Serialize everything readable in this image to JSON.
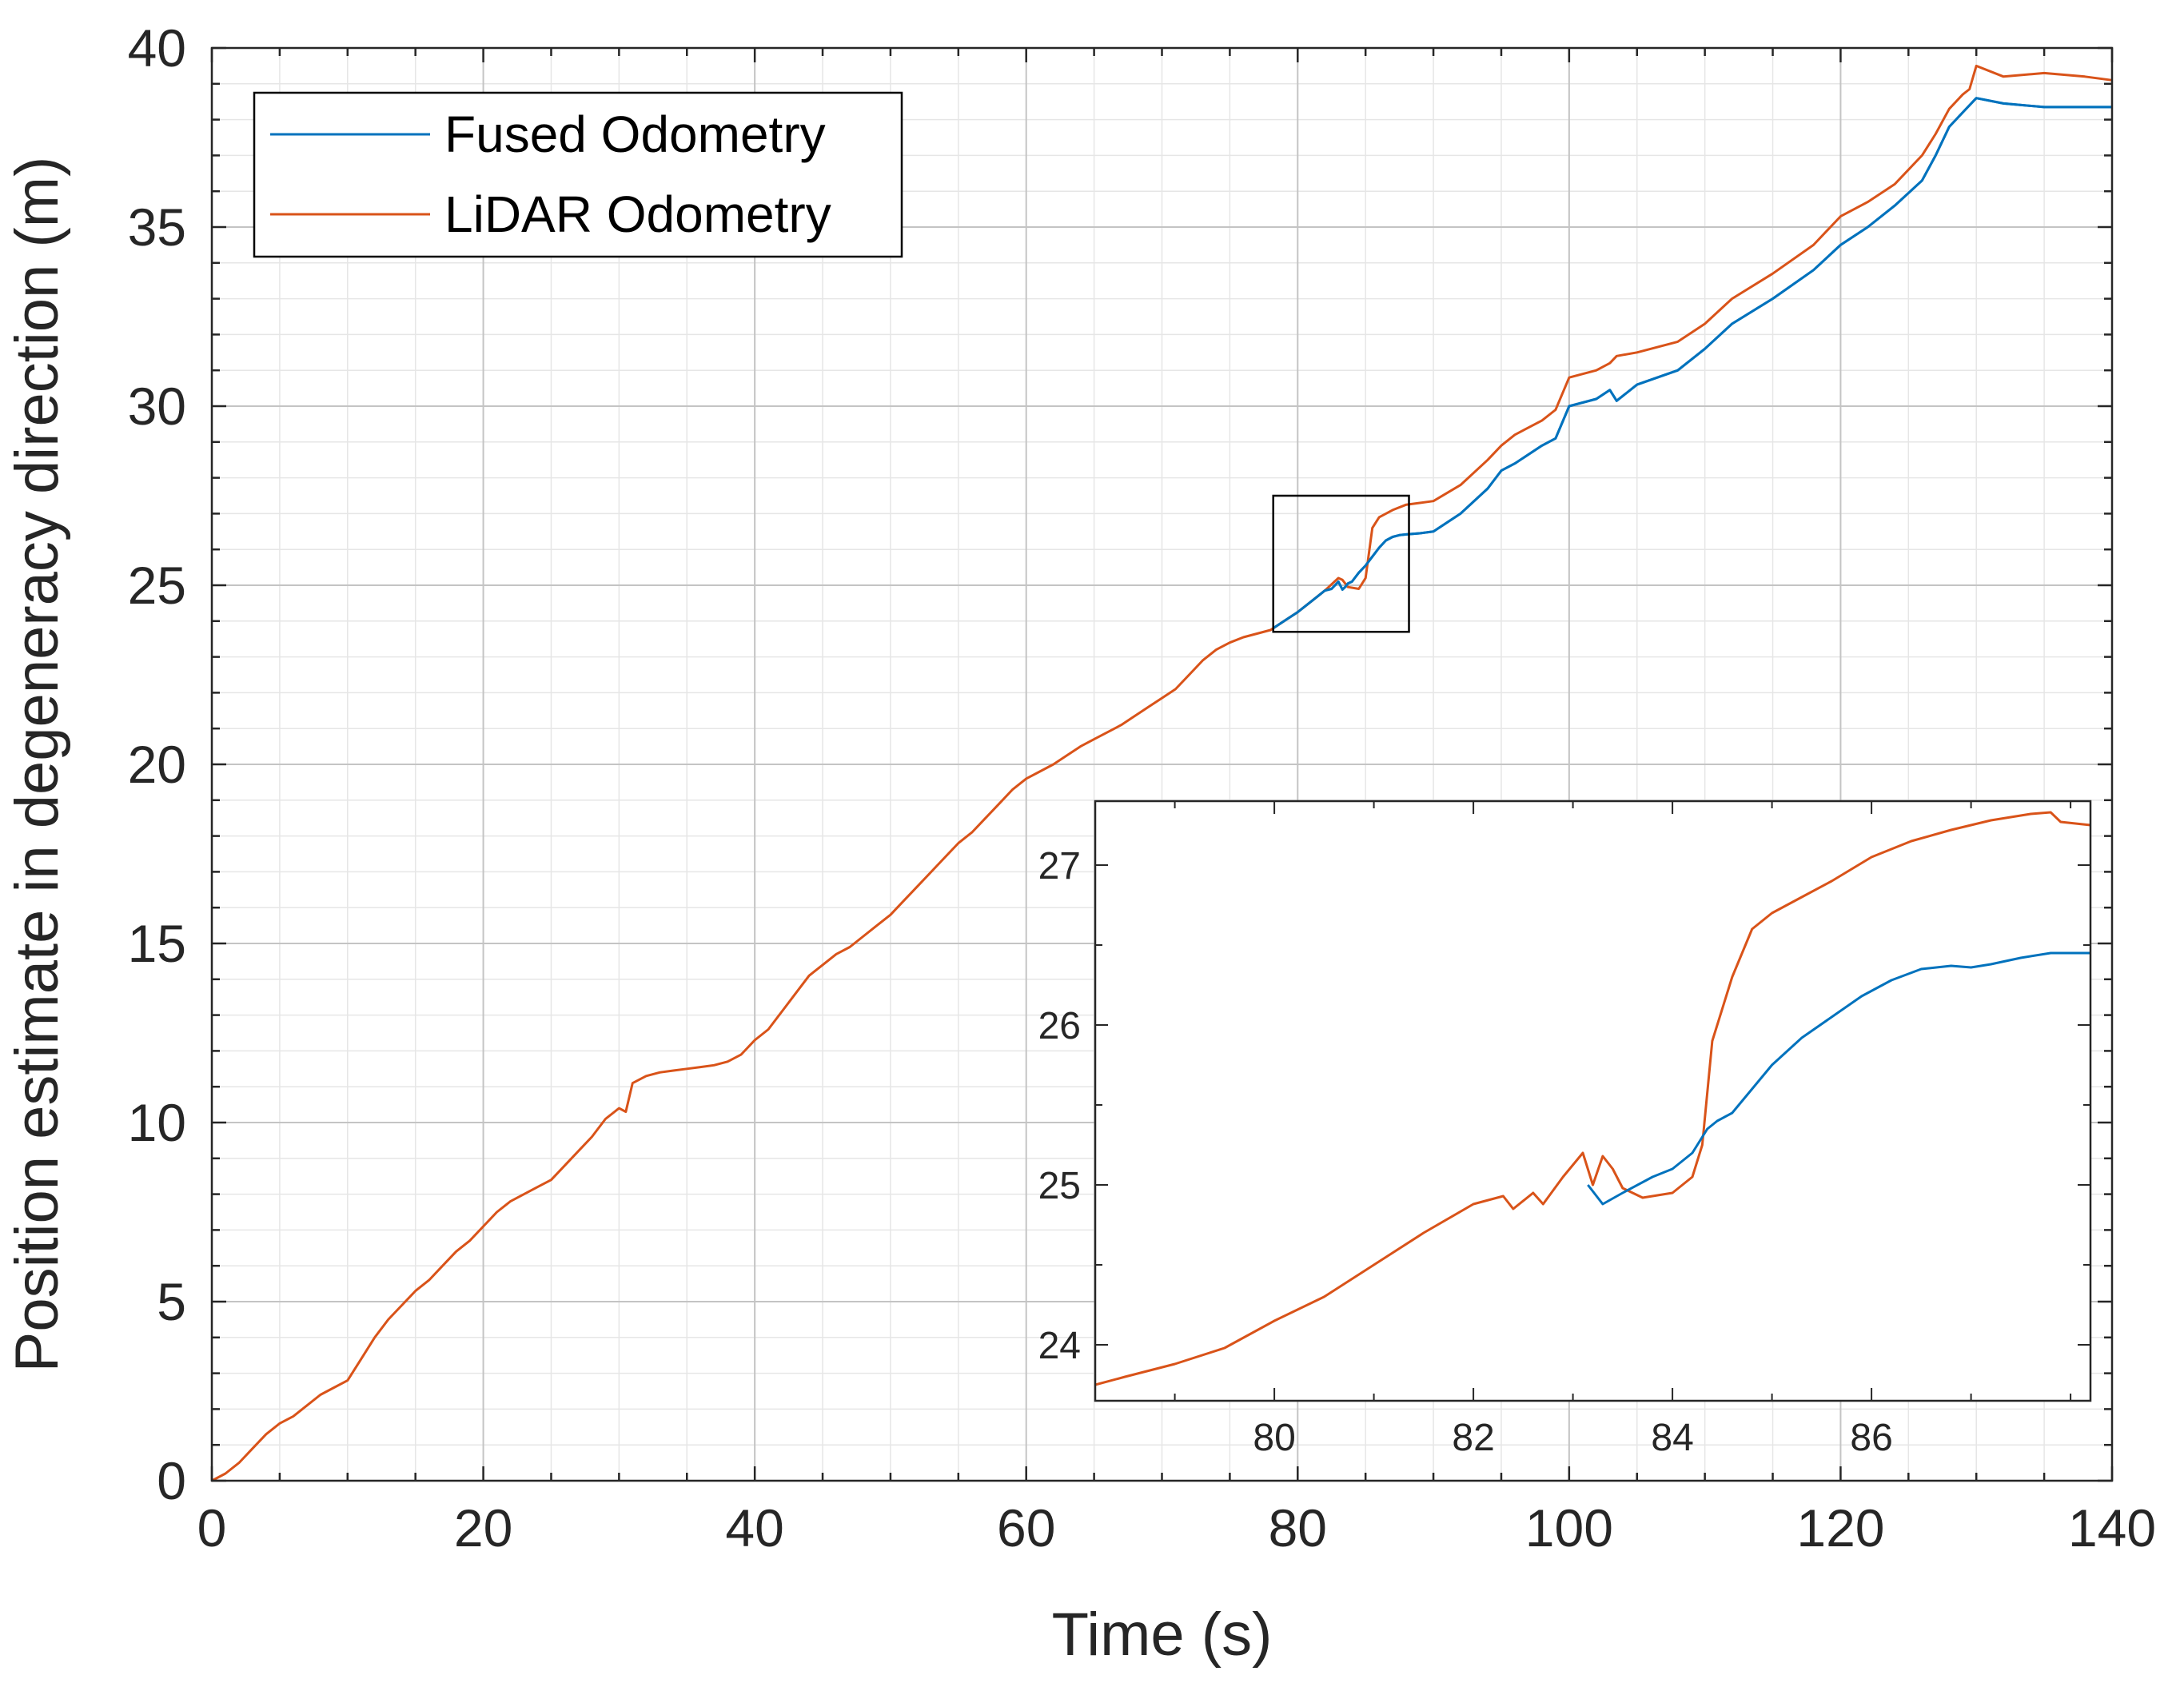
{
  "chart_data": {
    "type": "line",
    "xlabel": "Time (s)",
    "ylabel": "Position estimate in degeneracy direction (m)",
    "xlim": [
      0,
      140
    ],
    "ylim": [
      0,
      40
    ],
    "x_ticks": [
      0,
      20,
      40,
      60,
      80,
      100,
      120,
      140
    ],
    "y_ticks": [
      0,
      5,
      10,
      15,
      20,
      25,
      30,
      35,
      40
    ],
    "grid": "on (major and minor)",
    "legend_position": "top-left",
    "colors": {
      "fused": "#0072BD",
      "lidar": "#D95319",
      "grid": "#d0d0d0",
      "axis": "#262626"
    },
    "series": [
      {
        "name": "Fused Odometry",
        "x": [
          78.2,
          79,
          80,
          81,
          81.5,
          82,
          82.5,
          83,
          83.3,
          83.5,
          83.7,
          84,
          84.2,
          84.5,
          85,
          85.5,
          86,
          86.5,
          87,
          87.5,
          88,
          89,
          90,
          92,
          94,
          95,
          96,
          98,
          99,
          100,
          102,
          103,
          103.5,
          105,
          108,
          110,
          112,
          115,
          118,
          120,
          122,
          124,
          126,
          127,
          128,
          129,
          130,
          132,
          135,
          138,
          140
        ],
        "values": [
          23.8,
          24.0,
          24.25,
          24.55,
          24.7,
          24.85,
          24.9,
          25.1,
          24.88,
          24.95,
          25.05,
          25.1,
          25.2,
          25.35,
          25.55,
          25.8,
          26.05,
          26.25,
          26.35,
          26.4,
          26.42,
          26.45,
          26.5,
          27.0,
          27.7,
          28.2,
          28.4,
          28.9,
          29.1,
          30.0,
          30.2,
          30.45,
          30.15,
          30.6,
          31.0,
          31.6,
          32.3,
          33.0,
          33.8,
          34.5,
          35.0,
          35.6,
          36.3,
          37.0,
          37.8,
          38.2,
          38.6,
          38.45,
          38.35,
          38.35,
          38.35
        ]
      },
      {
        "name": "LiDAR Odometry",
        "x": [
          0,
          1,
          2,
          3,
          4,
          5,
          6,
          7,
          8,
          9,
          10,
          11,
          12,
          13,
          14,
          15,
          16,
          17,
          18,
          19,
          20,
          21,
          22,
          23,
          24,
          25,
          26,
          27,
          28,
          29,
          30,
          30.5,
          31,
          32,
          33,
          34,
          35,
          36,
          37,
          38,
          39,
          40,
          41,
          42,
          43,
          44,
          45,
          46,
          47,
          48,
          49,
          50,
          51,
          52,
          53,
          54,
          55,
          56,
          57,
          58,
          59,
          60,
          61,
          62,
          63,
          64,
          65,
          66,
          67,
          68,
          69,
          70,
          71,
          72,
          73,
          74,
          75,
          76,
          77,
          78,
          79,
          80,
          81,
          82,
          83,
          83.3,
          83.7,
          84.5,
          85,
          85.5,
          86,
          87,
          88,
          89,
          90,
          92,
          94,
          95,
          96,
          98,
          99,
          100,
          102,
          103,
          103.5,
          105,
          108,
          110,
          112,
          115,
          118,
          120,
          122,
          124,
          126,
          127,
          128,
          129,
          129.5,
          130,
          132,
          135,
          138,
          140
        ],
        "values": [
          0.0,
          0.2,
          0.5,
          0.9,
          1.3,
          1.6,
          1.8,
          2.1,
          2.4,
          2.6,
          2.8,
          3.4,
          4.0,
          4.5,
          4.9,
          5.3,
          5.6,
          6.0,
          6.4,
          6.7,
          7.1,
          7.5,
          7.8,
          8.0,
          8.2,
          8.4,
          8.8,
          9.2,
          9.6,
          10.1,
          10.4,
          10.3,
          11.1,
          11.3,
          11.4,
          11.45,
          11.5,
          11.55,
          11.6,
          11.7,
          11.9,
          12.3,
          12.6,
          13.1,
          13.6,
          14.1,
          14.4,
          14.7,
          14.9,
          15.2,
          15.5,
          15.8,
          16.2,
          16.6,
          17.0,
          17.4,
          17.8,
          18.1,
          18.5,
          18.9,
          19.3,
          19.6,
          19.8,
          20.0,
          20.25,
          20.5,
          20.7,
          20.9,
          21.1,
          21.35,
          21.6,
          21.85,
          22.1,
          22.5,
          22.9,
          23.2,
          23.4,
          23.55,
          23.65,
          23.75,
          24.0,
          24.25,
          24.55,
          24.85,
          25.2,
          25.15,
          24.95,
          24.9,
          25.2,
          26.6,
          26.9,
          27.1,
          27.25,
          27.3,
          27.35,
          27.8,
          28.5,
          28.9,
          29.2,
          29.6,
          29.9,
          30.8,
          31.0,
          31.2,
          31.4,
          31.5,
          31.8,
          32.3,
          33.0,
          33.7,
          34.5,
          35.3,
          35.7,
          36.2,
          37.0,
          37.6,
          38.3,
          38.7,
          38.85,
          39.5,
          39.2,
          39.3,
          39.2,
          39.1
        ]
      }
    ],
    "inset": {
      "xlim": [
        78.2,
        88.2
      ],
      "ylim": [
        23.65,
        27.4
      ],
      "x_ticks": [
        80,
        82,
        84,
        86
      ],
      "y_ticks": [
        24,
        25,
        26,
        27
      ],
      "series": [
        {
          "name": "Fused Odometry",
          "x": [
            83.15,
            83.3,
            83.5,
            83.8,
            84.0,
            84.2,
            84.35,
            84.45,
            84.6,
            84.8,
            85.0,
            85.3,
            85.6,
            85.9,
            86.2,
            86.5,
            86.8,
            87.0,
            87.2,
            87.5,
            87.8,
            88.2
          ],
          "values": [
            25.0,
            24.88,
            24.95,
            25.05,
            25.1,
            25.2,
            25.35,
            25.4,
            25.45,
            25.6,
            25.75,
            25.92,
            26.05,
            26.18,
            26.28,
            26.35,
            26.37,
            26.36,
            26.38,
            26.42,
            26.45,
            26.45
          ]
        },
        {
          "name": "LiDAR Odometry",
          "x": [
            78.2,
            78.5,
            79.0,
            79.5,
            80.0,
            80.5,
            81.0,
            81.5,
            82.0,
            82.3,
            82.4,
            82.6,
            82.7,
            82.9,
            83.1,
            83.2,
            83.3,
            83.4,
            83.5,
            83.7,
            84.0,
            84.2,
            84.3,
            84.4,
            84.6,
            84.8,
            85.0,
            85.3,
            85.6,
            86.0,
            86.4,
            86.8,
            87.2,
            87.6,
            87.8,
            87.9,
            88.2
          ],
          "values": [
            23.75,
            23.8,
            23.88,
            23.98,
            24.15,
            24.3,
            24.5,
            24.7,
            24.88,
            24.93,
            24.85,
            24.95,
            24.88,
            25.05,
            25.2,
            25.0,
            25.18,
            25.1,
            24.98,
            24.92,
            24.95,
            25.05,
            25.25,
            25.9,
            26.3,
            26.6,
            26.7,
            26.8,
            26.9,
            27.05,
            27.15,
            27.22,
            27.28,
            27.32,
            27.33,
            27.27,
            27.25
          ]
        }
      ]
    },
    "zoom_box": {
      "x": [
        78.2,
        88.2
      ],
      "y": [
        23.7,
        27.5
      ]
    }
  }
}
